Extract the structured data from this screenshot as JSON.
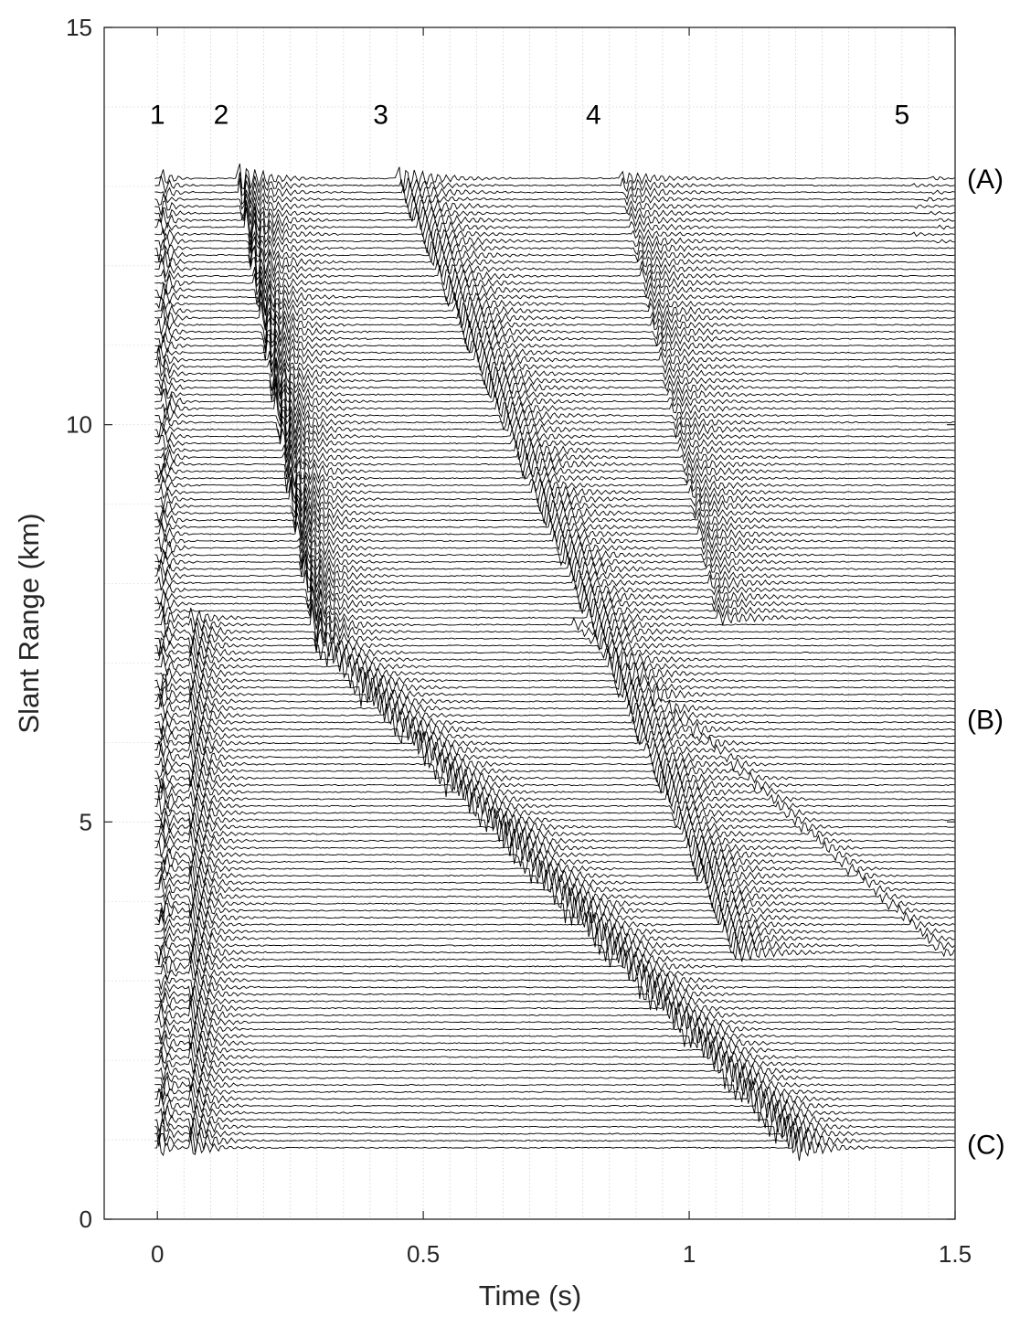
{
  "chart_data": {
    "type": "line",
    "title": "",
    "xlabel": "Time (s)",
    "ylabel": "Slant Range (km)",
    "xlim": [
      -0.1,
      1.5
    ],
    "ylim": [
      0,
      15
    ],
    "xticks": [
      {
        "value": 0,
        "label": "0"
      },
      {
        "value": 0.5,
        "label": "0.5"
      },
      {
        "value": 1,
        "label": "1"
      },
      {
        "value": 1.5,
        "label": "1.5"
      }
    ],
    "yticks": [
      {
        "value": 0,
        "label": "0"
      },
      {
        "value": 5,
        "label": "5"
      },
      {
        "value": 10,
        "label": "10"
      },
      {
        "value": 15,
        "label": "15"
      }
    ],
    "grid": true,
    "minor_grid_x_step": 0.05,
    "trace_range_km": [
      0.9,
      13.1
    ],
    "trace_count": 140,
    "series": [
      {
        "label": "1",
        "onset_time_s": 0.0,
        "range_start_km": 0.9,
        "range_end_km": 13.1,
        "curve": "direct"
      },
      {
        "label": "2",
        "onset_time_s": 0.15,
        "range_start_km": 0.9,
        "range_end_km": 13.1,
        "curve": "steep"
      },
      {
        "label": "3",
        "onset_time_s": 0.45,
        "range_start_km": 0.9,
        "range_end_km": 13.1,
        "curve": "medium"
      },
      {
        "label": "4",
        "onset_time_s": 0.87,
        "range_start_km": 3.2,
        "range_end_km": 13.1,
        "curve": "shallow"
      },
      {
        "label": "5",
        "onset_time_s": 1.42,
        "range_start_km": 12.3,
        "range_end_km": 13.1,
        "curve": "weak"
      }
    ],
    "annotations": {
      "arrivals": [
        {
          "text": "1",
          "x": 0.0,
          "y": 13.9
        },
        {
          "text": "2",
          "x": 0.12,
          "y": 13.9
        },
        {
          "text": "3",
          "x": 0.42,
          "y": 13.9
        },
        {
          "text": "4",
          "x": 0.82,
          "y": 13.9
        },
        {
          "text": "5",
          "x": 1.4,
          "y": 13.9
        }
      ],
      "sites": [
        {
          "text": "(A)",
          "y": 13.1
        },
        {
          "text": "(B)",
          "y": 6.3
        },
        {
          "text": "(C)",
          "y": 0.95
        }
      ]
    }
  }
}
